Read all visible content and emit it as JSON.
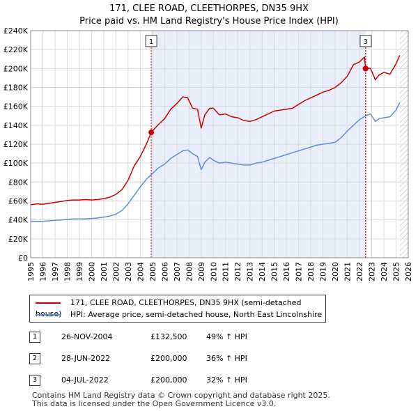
{
  "title": "171, CLEE ROAD, CLEETHORPES, DN35 9HX",
  "subtitle": "Price paid vs. HM Land Registry's House Price Index (HPI)",
  "chart_data": {
    "type": "line",
    "ylim": [
      0,
      240000
    ],
    "xlim": [
      1995.0,
      2026.0
    ],
    "y_ticks": [
      0,
      20000,
      40000,
      60000,
      80000,
      100000,
      120000,
      140000,
      160000,
      180000,
      200000,
      220000,
      240000
    ],
    "y_tick_labels": [
      "£0",
      "£20K",
      "£40K",
      "£60K",
      "£80K",
      "£100K",
      "£120K",
      "£140K",
      "£160K",
      "£180K",
      "£200K",
      "£220K",
      "£240K"
    ],
    "x_ticks": [
      1995,
      1996,
      1997,
      1998,
      1999,
      2000,
      2001,
      2002,
      2003,
      2004,
      2005,
      2006,
      2007,
      2008,
      2009,
      2010,
      2011,
      2012,
      2013,
      2014,
      2015,
      2016,
      2017,
      2018,
      2019,
      2020,
      2021,
      2022,
      2023,
      2024,
      2025,
      2026
    ],
    "x_tick_labels": [
      "1995",
      "1996",
      "1997",
      "1998",
      "1999",
      "2000",
      "2001",
      "2002",
      "2003",
      "2004",
      "2005",
      "2006",
      "2007",
      "2008",
      "2009",
      "2010",
      "2011",
      "2012",
      "2013",
      "2014",
      "2015",
      "2016",
      "2017",
      "2018",
      "2019",
      "2020",
      "2021",
      "2022",
      "2023",
      "2024",
      "2025",
      "2026"
    ],
    "grid": true,
    "shaded_range": [
      2004.9,
      2022.5
    ],
    "future_hatch_from": 2025.3,
    "series": [
      {
        "name": "171, CLEE ROAD, CLEETHORPES, DN35 9HX (semi-detached house)",
        "color": "#cc0000",
        "x": [
          1995.0,
          1995.5,
          1996.0,
          1996.5,
          1997.0,
          1997.5,
          1998.0,
          1998.5,
          1999.0,
          1999.5,
          2000.0,
          2000.5,
          2001.0,
          2001.5,
          2002.0,
          2002.5,
          2003.0,
          2003.5,
          2004.0,
          2004.5,
          2004.9,
          2005.5,
          2006.0,
          2006.5,
          2007.0,
          2007.5,
          2007.9,
          2008.3,
          2008.7,
          2009.0,
          2009.3,
          2009.7,
          2010.0,
          2010.5,
          2011.0,
          2011.5,
          2012.0,
          2012.5,
          2013.0,
          2013.5,
          2014.0,
          2014.5,
          2015.0,
          2015.5,
          2016.0,
          2016.5,
          2017.0,
          2017.5,
          2018.0,
          2018.5,
          2019.0,
          2019.5,
          2020.0,
          2020.5,
          2021.0,
          2021.5,
          2022.0,
          2022.4,
          2022.5,
          2022.9,
          2023.3,
          2023.6,
          2024.0,
          2024.5,
          2025.0,
          2025.3
        ],
        "y": [
          56000,
          57000,
          56500,
          57500,
          58500,
          59500,
          60500,
          61000,
          61000,
          61500,
          61000,
          61500,
          62500,
          64000,
          67000,
          72000,
          82000,
          97000,
          107000,
          120000,
          132500,
          141000,
          147000,
          157000,
          163000,
          170000,
          169000,
          158000,
          157000,
          137000,
          151000,
          158000,
          158000,
          151000,
          152000,
          149000,
          148000,
          145000,
          144000,
          146000,
          149000,
          152000,
          155000,
          156000,
          157000,
          158000,
          162000,
          166000,
          169000,
          172000,
          175000,
          177000,
          180000,
          185000,
          192000,
          204000,
          207000,
          212000,
          200000,
          200000,
          188000,
          193000,
          196000,
          194000,
          205000,
          214000
        ]
      },
      {
        "name": "HPI: Average price, semi-detached house, North East Lincolnshire",
        "color": "#5b8fd4",
        "x": [
          1995.0,
          1995.5,
          1996.0,
          1996.5,
          1997.0,
          1997.5,
          1998.0,
          1998.5,
          1999.0,
          1999.5,
          2000.0,
          2000.5,
          2001.0,
          2001.5,
          2002.0,
          2002.5,
          2003.0,
          2003.5,
          2004.0,
          2004.5,
          2005.0,
          2005.5,
          2006.0,
          2006.5,
          2007.0,
          2007.5,
          2007.9,
          2008.3,
          2008.7,
          2009.0,
          2009.3,
          2009.7,
          2010.0,
          2010.5,
          2011.0,
          2011.5,
          2012.0,
          2012.5,
          2013.0,
          2013.5,
          2014.0,
          2014.5,
          2015.0,
          2015.5,
          2016.0,
          2016.5,
          2017.0,
          2017.5,
          2018.0,
          2018.5,
          2019.0,
          2019.5,
          2020.0,
          2020.5,
          2021.0,
          2021.5,
          2022.0,
          2022.5,
          2022.9,
          2023.3,
          2023.6,
          2024.0,
          2024.5,
          2025.0,
          2025.3
        ],
        "y": [
          38000,
          38500,
          38500,
          39000,
          39500,
          40000,
          40500,
          41000,
          41000,
          41000,
          41500,
          42000,
          43000,
          44000,
          46000,
          50000,
          57000,
          66000,
          75000,
          83000,
          89000,
          95000,
          99000,
          105000,
          109000,
          113000,
          114000,
          110000,
          107000,
          93000,
          101000,
          106000,
          103000,
          100000,
          101000,
          100000,
          99000,
          98000,
          98000,
          100000,
          101000,
          103000,
          105000,
          107000,
          109000,
          111000,
          113000,
          115000,
          117000,
          119000,
          120000,
          121000,
          122000,
          127000,
          134000,
          140000,
          146000,
          150000,
          152000,
          144000,
          147000,
          148000,
          149000,
          156000,
          164000
        ]
      }
    ],
    "markers": [
      {
        "label": "1",
        "x": 2004.9,
        "y": 132500,
        "box_y": 229000
      },
      {
        "label": "2",
        "x": 2022.49,
        "y": 200000,
        "box_y": 229000
      },
      {
        "label": "3",
        "x": 2022.51,
        "y": 200000,
        "box_y": 229000
      }
    ]
  },
  "legend": {
    "items": [
      {
        "label": "171, CLEE ROAD, CLEETHORPES, DN35 9HX (semi-detached house)",
        "color": "#cc0000"
      },
      {
        "label": "HPI: Average price, semi-detached house, North East Lincolnshire",
        "color": "#5b8fd4"
      }
    ]
  },
  "transactions": [
    {
      "num": "1",
      "date": "26-NOV-2004",
      "price": "£132,500",
      "delta": "49% ↑ HPI"
    },
    {
      "num": "2",
      "date": "28-JUN-2022",
      "price": "£200,000",
      "delta": "36% ↑ HPI"
    },
    {
      "num": "3",
      "date": "04-JUL-2022",
      "price": "£200,000",
      "delta": "32% ↑ HPI"
    }
  ],
  "footer": {
    "line1": "Contains HM Land Registry data © Crown copyright and database right 2025.",
    "line2": "This data is licensed under the Open Government Licence v3.0."
  }
}
